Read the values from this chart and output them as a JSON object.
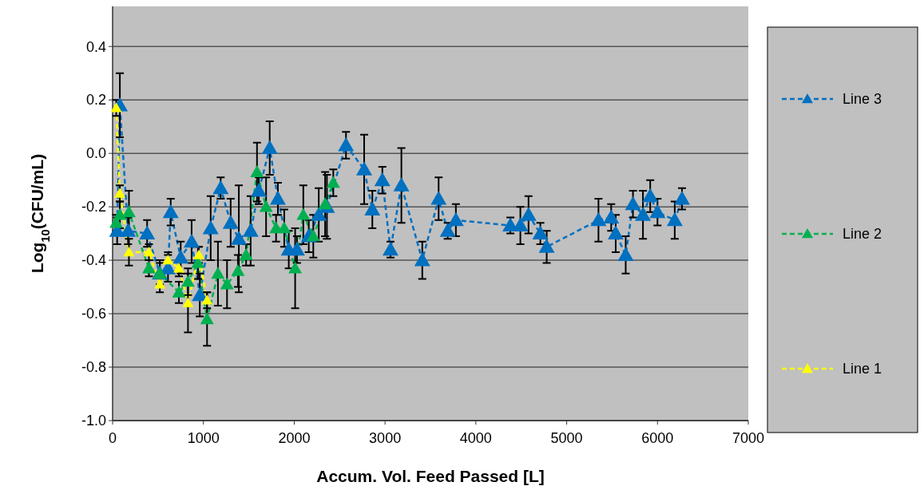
{
  "chart_data": {
    "type": "line",
    "xlabel": "Accum. Vol. Feed Passed [L]",
    "ylabel": "Log$_{10}$(CFU/mL)",
    "xlim": [
      0,
      7000
    ],
    "xticks": [
      0,
      1000,
      2000,
      3000,
      4000,
      5000,
      6000,
      7000
    ],
    "ylim": [
      -1.0,
      0.55
    ],
    "yticks": [
      {
        "value": -1,
        "label": "-1.0"
      },
      {
        "value": -0.8,
        "label": "-0.8"
      },
      {
        "value": -0.6,
        "label": "-0.6"
      },
      {
        "value": -0.4,
        "label": "-0.4"
      },
      {
        "value": -0.2,
        "label": "-0.2"
      },
      {
        "value": 0,
        "label": "0.0"
      },
      {
        "value": 0.2,
        "label": "0.2"
      },
      {
        "value": 0.4,
        "label": "0.4"
      }
    ],
    "grid": "y",
    "legend": "right",
    "marker": "triangle",
    "line_style": "dashed",
    "series": [
      {
        "name": "Line 3",
        "color": "#0070c0",
        "x": [
          50,
          80,
          170,
          380,
          520,
          610,
          640,
          750,
          870,
          960,
          1080,
          1190,
          1300,
          1390,
          1520,
          1610,
          1730,
          1820,
          1940,
          2030,
          2160,
          2270,
          2360,
          2570,
          2770,
          2860,
          2970,
          3060,
          3180,
          3410,
          3590,
          3690,
          3780,
          4380,
          4490,
          4580,
          4710,
          4780,
          5350,
          5490,
          5540,
          5650,
          5730,
          5840,
          5920,
          6000,
          6190,
          6270
        ],
        "values": [
          -0.29,
          0.18,
          -0.29,
          -0.3,
          -0.45,
          -0.43,
          -0.22,
          -0.39,
          -0.33,
          -0.53,
          -0.28,
          -0.13,
          -0.26,
          -0.32,
          -0.29,
          -0.14,
          0.02,
          -0.17,
          -0.36,
          -0.36,
          -0.31,
          -0.23,
          -0.2,
          0.03,
          -0.06,
          -0.21,
          -0.1,
          -0.36,
          -0.12,
          -0.4,
          -0.17,
          -0.29,
          -0.25,
          -0.27,
          -0.27,
          -0.23,
          -0.3,
          -0.35,
          -0.25,
          -0.24,
          -0.3,
          -0.38,
          -0.19,
          -0.23,
          -0.16,
          -0.22,
          -0.25,
          -0.17
        ],
        "errors": [
          0.05,
          0.12,
          0.05,
          0.05,
          0.05,
          0.05,
          0.05,
          0.06,
          0.08,
          0.08,
          0.12,
          0.04,
          0.09,
          0.2,
          0.13,
          0.05,
          0.1,
          0.06,
          0.07,
          0.05,
          0.06,
          0.1,
          0.12,
          0.05,
          0.13,
          0.07,
          0.05,
          0.03,
          0.14,
          0.07,
          0.08,
          0.03,
          0.06,
          0.03,
          0.07,
          0.07,
          0.04,
          0.06,
          0.08,
          0.05,
          0.07,
          0.07,
          0.05,
          0.09,
          0.06,
          0.05,
          0.07,
          0.04
        ]
      },
      {
        "name": "Line 2",
        "color": "#00b050",
        "x": [
          40,
          80,
          180,
          400,
          520,
          730,
          830,
          940,
          1040,
          1160,
          1260,
          1380,
          1470,
          1590,
          1690,
          1800,
          1890,
          2010,
          2100,
          2210,
          2340,
          2430
        ],
        "values": [
          -0.26,
          -0.23,
          -0.22,
          -0.43,
          -0.45,
          -0.52,
          -0.48,
          -0.41,
          -0.62,
          -0.45,
          -0.49,
          -0.44,
          -0.38,
          -0.07,
          -0.2,
          -0.28,
          -0.28,
          -0.43,
          -0.23,
          -0.31,
          -0.19,
          -0.11
        ],
        "errors": [
          0.03,
          0.05,
          0.08,
          0.03,
          0.04,
          0.04,
          0.05,
          0.06,
          0.1,
          0.12,
          0.09,
          0.06,
          0.04,
          0.11,
          0.11,
          0.05,
          0.07,
          0.15,
          0.11,
          0.08,
          0.12,
          0.05
        ]
      },
      {
        "name": "Line 1",
        "color": "#ffff00",
        "x": [
          40,
          80,
          180,
          400,
          520,
          610,
          730,
          830,
          950,
          1040
        ],
        "values": [
          0.17,
          -0.15,
          -0.37,
          -0.37,
          -0.49,
          -0.4,
          -0.43,
          -0.56,
          -0.38,
          -0.55
        ],
        "errors": [
          0.03,
          0.03,
          0.05,
          0.03,
          0.03,
          0.03,
          0.03,
          0.11,
          0.03,
          0.03
        ]
      }
    ]
  }
}
